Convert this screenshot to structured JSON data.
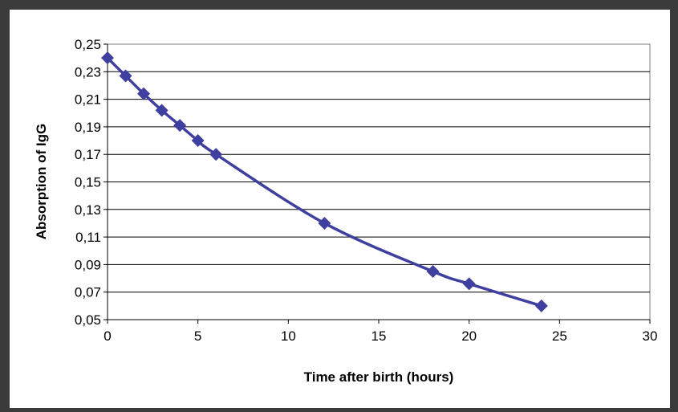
{
  "chart_data": {
    "type": "line",
    "title": "",
    "xlabel": "Time after birth (hours)",
    "ylabel": "Absorption of IgG",
    "xlim": [
      0,
      30
    ],
    "ylim": [
      0.05,
      0.25
    ],
    "xticks": [
      0,
      5,
      10,
      15,
      20,
      25,
      30
    ],
    "xtick_labels": [
      "0",
      "5",
      "10",
      "15",
      "20",
      "25",
      "30"
    ],
    "yticks": [
      0.05,
      0.07,
      0.09,
      0.11,
      0.13,
      0.15,
      0.17,
      0.19,
      0.21,
      0.23,
      0.25
    ],
    "ytick_labels": [
      "0,05",
      "0,07",
      "0,09",
      "0,11",
      "0,13",
      "0,15",
      "0,17",
      "0,19",
      "0,21",
      "0,23",
      "0,25"
    ],
    "grid": "horizontal",
    "legend": "none",
    "marker": "diamond",
    "series": [
      {
        "x": [
          0,
          1,
          2,
          3,
          4,
          5,
          6,
          12,
          18,
          20,
          24
        ],
        "y": [
          0.24,
          0.227,
          0.214,
          0.202,
          0.191,
          0.18,
          0.17,
          0.12,
          0.085,
          0.076,
          0.06
        ],
        "color": "#3f3fa0"
      }
    ]
  }
}
